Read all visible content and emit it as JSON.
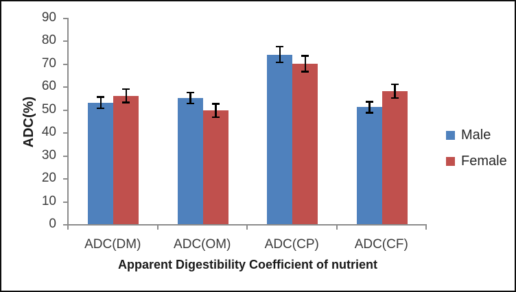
{
  "chart_data": {
    "type": "bar",
    "title": "",
    "xlabel": "Apparent Digestibility Coefficient of nutrient",
    "ylabel": "ADC(%)",
    "categories": [
      "ADC(DM)",
      "ADC(OM)",
      "ADC(CP)",
      "ADC(CF)"
    ],
    "series": [
      {
        "name": "Male",
        "color": "#4F81BD",
        "values": [
          53,
          55,
          74,
          51
        ],
        "errors": [
          2.5,
          2.5,
          3.5,
          2.5
        ]
      },
      {
        "name": "Female",
        "color": "#C0504D",
        "values": [
          56,
          49.5,
          70,
          58
        ],
        "errors": [
          3,
          3,
          3.5,
          3
        ]
      }
    ],
    "ylim": [
      0,
      90
    ],
    "yticks": [
      0,
      10,
      20,
      30,
      40,
      50,
      60,
      70,
      80,
      90
    ],
    "legend_position": "right",
    "grid": false,
    "error_bars": true,
    "axis_color": "#8c8c8c",
    "error_bar_color": "#000000",
    "background_color": "#ffffff",
    "border_color": "#0d0d0d"
  }
}
